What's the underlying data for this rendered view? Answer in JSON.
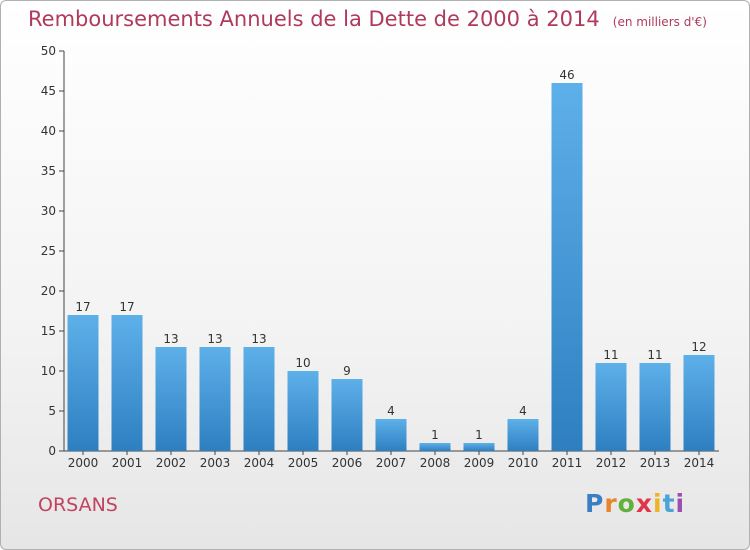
{
  "header": {
    "title": "Remboursements Annuels de la Dette de 2000 à 2014",
    "unit": "(en milliers d'€)"
  },
  "footer": {
    "place": "ORSANS",
    "logo_letters": [
      "P",
      "r",
      "o",
      "x",
      "i",
      "t",
      "i"
    ],
    "logo_colors": [
      "#3a7fc4",
      "#e8842a",
      "#63b13a",
      "#e0344a",
      "#f0b323",
      "#4aa3d9",
      "#9b4fb0"
    ]
  },
  "chart_data": {
    "type": "bar",
    "categories": [
      "2000",
      "2001",
      "2002",
      "2003",
      "2004",
      "2005",
      "2006",
      "2007",
      "2008",
      "2009",
      "2010",
      "2011",
      "2012",
      "2013",
      "2014"
    ],
    "values": [
      17,
      17,
      13,
      13,
      13,
      10,
      9,
      4,
      1,
      1,
      4,
      46,
      11,
      11,
      12
    ],
    "title": "Remboursements Annuels de la Dette de 2000 à 2014",
    "xlabel": "",
    "ylabel": "",
    "ylim": [
      0,
      50
    ],
    "yticks": [
      0,
      5,
      10,
      15,
      20,
      25,
      30,
      35,
      40,
      45,
      50
    ],
    "grid": false,
    "bar_color": "#4a9fe0",
    "data_labels": true
  }
}
